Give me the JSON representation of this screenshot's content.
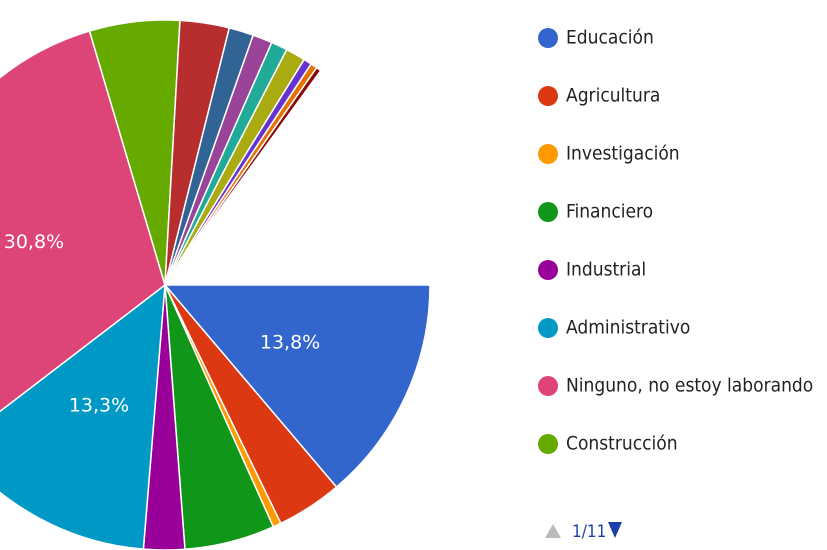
{
  "chart_data": {
    "type": "pie",
    "categories": [
      "Educación",
      "Agricultura",
      "Investigación",
      "Financiero",
      "Industrial",
      "Administrativo",
      "Ninguno, no estoy laborando",
      "Construcción",
      null,
      null,
      null,
      null,
      null,
      null,
      null,
      null
    ],
    "values": [
      13.8,
      4,
      0.5,
      5.5,
      2.5,
      13.3,
      30.8,
      5.5,
      3,
      1.5,
      1.2,
      1,
      1.2,
      0.5,
      0.4,
      0.3
    ],
    "value_labels": [
      "13,8%",
      null,
      null,
      null,
      null,
      "13,3%",
      "30,8%",
      null,
      null,
      null,
      null,
      null,
      null,
      null,
      null,
      null
    ],
    "colors": [
      "#3366cc",
      "#dc3912",
      "#ff9900",
      "#109618",
      "#990099",
      "#0099c6",
      "#dd4477",
      "#66aa00",
      "#b82e2e",
      "#316395",
      "#994499",
      "#22aa99",
      "#aaaa11",
      "#6633cc",
      "#e67300",
      "#8b0707"
    ],
    "legend_position": "right",
    "pagination": "1/11"
  }
}
